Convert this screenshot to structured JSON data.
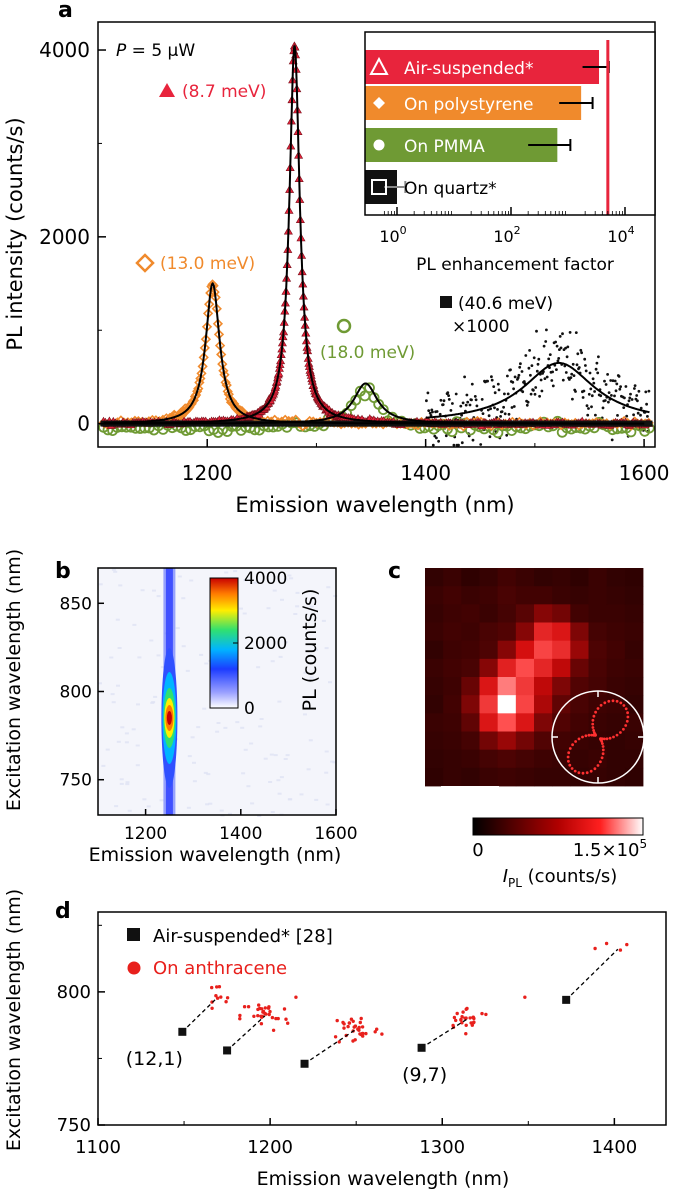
{
  "colors": {
    "air": "#e8243c",
    "polystyrene": "#f08a2c",
    "pmma": "#6f9a34",
    "quartz": "#111111",
    "fit": "#000000",
    "anthracene": "#e8201c"
  },
  "panels": {
    "a": {
      "letter": "a"
    },
    "b": {
      "letter": "b"
    },
    "c": {
      "letter": "c"
    },
    "d": {
      "letter": "d"
    }
  },
  "chart_data": [
    {
      "panel": "a",
      "type": "line",
      "title": "",
      "power_label_italic": "P",
      "power_label_rest": " = 5 μW",
      "xlabel": "Emission wavelength (nm)",
      "ylabel": "PL intensity (counts/s)",
      "xlim": [
        1100,
        1610
      ],
      "ylim": [
        -250,
        4300
      ],
      "xticks": [
        "1200",
        "1400",
        "1600"
      ],
      "xtick_values": [
        1200,
        1400,
        1600
      ],
      "yticks": [
        "0",
        "2000",
        "4000"
      ],
      "ytick_values": [
        0,
        2000,
        4000
      ],
      "series": [
        {
          "name": "Air-suspended*",
          "marker": "filled-triangle",
          "center": 1280,
          "fwhm_nm": 11.5,
          "amplitude": 4050,
          "label": "(8.7 meV)"
        },
        {
          "name": "On polystyrene",
          "marker": "open-diamond",
          "center": 1205,
          "fwhm_nm": 15.5,
          "amplitude": 1500,
          "label": "(13.0 meV)"
        },
        {
          "name": "On PMMA",
          "marker": "open-circle",
          "center": 1345,
          "fwhm_nm": 26.5,
          "amplitude": 430,
          "label": "(18.0 meV)"
        },
        {
          "name": "On quartz*",
          "marker": "filled-square",
          "center": 1522,
          "fwhm_nm": 80,
          "amplitude": 650,
          "label": "(40.6 meV)",
          "scale_label": "×1000"
        }
      ],
      "inset": {
        "type": "bar",
        "xscale": "log",
        "xlabel": "PL enhancement factor",
        "xticks_base": [
          "10",
          "10",
          "10"
        ],
        "xticks_exp": [
          "0",
          "2",
          "4"
        ],
        "xtick_values": [
          0,
          2,
          4
        ],
        "categories": [
          "Air-suspended*",
          "On polystyrene",
          "On PMMA",
          "On quartz*"
        ],
        "values": [
          3500,
          1700,
          650,
          1
        ],
        "errors": [
          1700,
          1000,
          450,
          0.4
        ],
        "reference_line": 5000
      }
    },
    {
      "panel": "b",
      "type": "heatmap",
      "xlabel": "Emission wavelength (nm)",
      "ylabel": "Excitation wavelength (nm)",
      "xlim": [
        1100,
        1600
      ],
      "ylim": [
        730,
        870
      ],
      "xticks": [
        "1200",
        "1400",
        "1600"
      ],
      "xtick_values": [
        1200,
        1400,
        1600
      ],
      "yticks": [
        "750",
        "800",
        "850"
      ],
      "ytick_values": [
        750,
        800,
        850
      ],
      "colorbar_label": "PL (counts/s)",
      "colorbar_ticks": [
        "4000",
        "2000",
        "0"
      ],
      "colorbar_tick_values": [
        4000,
        2000,
        0
      ],
      "peak": {
        "emission": 1250,
        "excitation": 785,
        "value": 4000
      }
    },
    {
      "panel": "c",
      "type": "heatmap",
      "colorbar_label_main": "I",
      "colorbar_label_sub": "PL",
      "colorbar_label_rest": " (counts/s)",
      "colorbar_min_label": "0",
      "colorbar_max_label": "1.5×10",
      "colorbar_max_exp": "5",
      "grid": [
        [
          0.08,
          0.1,
          0.07,
          0.09,
          0.12,
          0.1,
          0.08,
          0.09,
          0.07,
          0.1,
          0.08,
          0.07
        ],
        [
          0.1,
          0.12,
          0.1,
          0.11,
          0.14,
          0.12,
          0.12,
          0.1,
          0.09,
          0.1,
          0.09,
          0.08
        ],
        [
          0.09,
          0.11,
          0.12,
          0.1,
          0.13,
          0.18,
          0.3,
          0.25,
          0.12,
          0.1,
          0.1,
          0.09
        ],
        [
          0.1,
          0.12,
          0.11,
          0.14,
          0.16,
          0.3,
          0.62,
          0.55,
          0.28,
          0.13,
          0.11,
          0.1
        ],
        [
          0.08,
          0.11,
          0.12,
          0.15,
          0.3,
          0.52,
          0.75,
          0.65,
          0.35,
          0.15,
          0.12,
          0.09
        ],
        [
          0.1,
          0.12,
          0.14,
          0.3,
          0.6,
          0.78,
          0.62,
          0.45,
          0.22,
          0.14,
          0.11,
          0.1
        ],
        [
          0.09,
          0.11,
          0.22,
          0.55,
          0.85,
          0.7,
          0.45,
          0.28,
          0.16,
          0.13,
          0.1,
          0.09
        ],
        [
          0.08,
          0.12,
          0.28,
          0.7,
          1.0,
          0.75,
          0.4,
          0.2,
          0.14,
          0.11,
          0.1,
          0.08
        ],
        [
          0.1,
          0.11,
          0.2,
          0.55,
          0.8,
          0.55,
          0.28,
          0.16,
          0.12,
          0.1,
          0.09,
          0.1
        ],
        [
          0.09,
          0.1,
          0.13,
          0.25,
          0.35,
          0.25,
          0.16,
          0.12,
          0.1,
          0.09,
          0.08,
          0.09
        ],
        [
          0.08,
          0.09,
          0.1,
          0.13,
          0.15,
          0.13,
          0.11,
          0.1,
          0.09,
          0.1,
          0.08,
          0.08
        ],
        [
          0.07,
          0.09,
          0.08,
          0.1,
          0.11,
          0.1,
          0.09,
          0.09,
          0.08,
          0.09,
          0.08,
          0.07
        ]
      ]
    },
    {
      "panel": "d",
      "type": "scatter",
      "xlabel": "Emission wavelength (nm)",
      "ylabel": "Excitation wavelength (nm)",
      "xlim": [
        1100,
        1430
      ],
      "ylim": [
        750,
        830
      ],
      "xticks": [
        "1100",
        "1200",
        "1300",
        "1400"
      ],
      "xtick_values": [
        1100,
        1200,
        1300,
        1400
      ],
      "yticks": [
        "750",
        "800"
      ],
      "ytick_values": [
        750,
        800
      ],
      "legend": [
        "Air-suspended* [28]",
        "On anthracene"
      ],
      "air_points": [
        {
          "x": 1149,
          "y": 785,
          "label": "(12,1)"
        },
        {
          "x": 1175,
          "y": 778,
          "label": ""
        },
        {
          "x": 1220,
          "y": 773,
          "label": ""
        },
        {
          "x": 1288,
          "y": 779,
          "label": "(9,7)"
        },
        {
          "x": 1372,
          "y": 797,
          "label": ""
        }
      ],
      "anthracene_clusters": [
        {
          "x": 1168,
          "y": 797,
          "n": 10,
          "sx": 5,
          "sy": 3
        },
        {
          "x": 1197,
          "y": 791,
          "n": 30,
          "sx": 7,
          "sy": 3
        },
        {
          "x": 1250,
          "y": 786,
          "n": 32,
          "sx": 7,
          "sy": 3
        },
        {
          "x": 1315,
          "y": 790,
          "n": 26,
          "sx": 7,
          "sy": 2
        },
        {
          "x": 1402,
          "y": 816,
          "n": 4,
          "sx": 7,
          "sy": 3
        }
      ]
    }
  ]
}
